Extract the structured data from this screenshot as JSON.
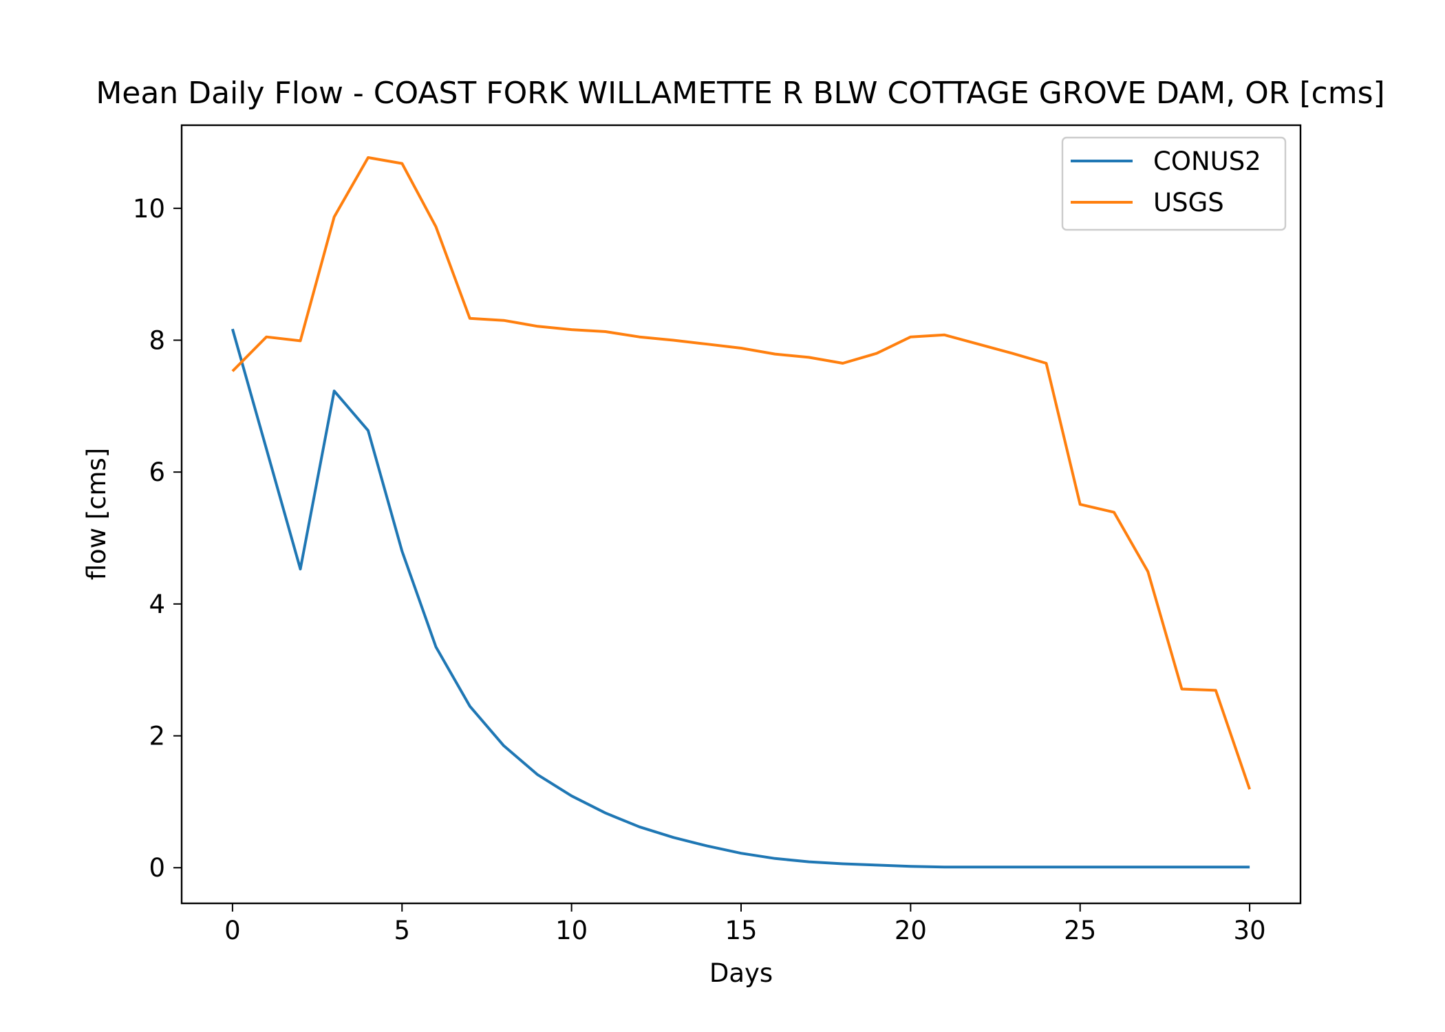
{
  "chart_data": {
    "type": "line",
    "title": "Mean Daily Flow - COAST FORK WILLAMETTE R BLW COTTAGE GROVE DAM, OR [cms]",
    "xlabel": "Days",
    "ylabel": "flow [cms]",
    "xlim": [
      -1.5,
      31.5
    ],
    "ylim": [
      -0.54,
      11.26
    ],
    "xticks": [
      0,
      5,
      10,
      15,
      20,
      25,
      30
    ],
    "yticks": [
      0,
      2,
      4,
      6,
      8,
      10
    ],
    "grid": false,
    "legend_position": "top-right",
    "x": [
      0,
      1,
      2,
      3,
      4,
      5,
      6,
      7,
      8,
      9,
      10,
      11,
      12,
      13,
      14,
      15,
      16,
      17,
      18,
      19,
      20,
      21,
      22,
      23,
      24,
      25,
      26,
      27,
      28,
      29,
      30
    ],
    "series": [
      {
        "name": "CONUS2",
        "color": "#1f77b4",
        "values": [
          8.17,
          6.35,
          4.53,
          7.23,
          6.63,
          4.8,
          3.35,
          2.45,
          1.85,
          1.41,
          1.09,
          0.83,
          0.62,
          0.46,
          0.33,
          0.22,
          0.14,
          0.09,
          0.06,
          0.04,
          0.02,
          0.01,
          0.01,
          0.01,
          0.01,
          0.01,
          0.01,
          0.01,
          0.01,
          0.01,
          0.01
        ]
      },
      {
        "name": "USGS",
        "color": "#ff7f0e",
        "values": [
          7.53,
          8.05,
          7.99,
          9.87,
          10.77,
          10.68,
          9.72,
          8.33,
          8.3,
          8.21,
          8.16,
          8.13,
          8.05,
          8.0,
          7.94,
          7.88,
          7.79,
          7.74,
          7.65,
          7.8,
          8.05,
          8.08,
          7.94,
          7.8,
          7.65,
          5.51,
          5.39,
          4.49,
          2.71,
          2.69,
          1.19
        ]
      }
    ]
  }
}
